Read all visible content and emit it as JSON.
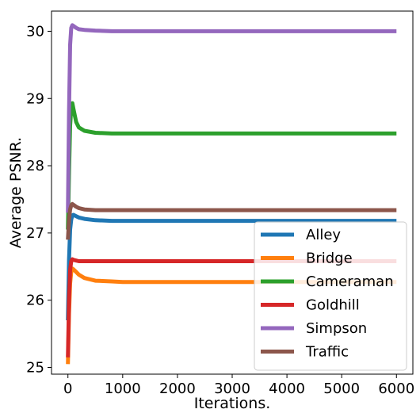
{
  "chart_data": {
    "type": "line",
    "title": "",
    "xlabel": "Iterations.",
    "ylabel": "Average PSNR.",
    "xlim": [
      -300,
      6300
    ],
    "ylim": [
      24.9,
      30.3
    ],
    "x_ticks": [
      0,
      1000,
      2000,
      3000,
      4000,
      5000,
      6000
    ],
    "y_ticks": [
      25,
      26,
      27,
      28,
      29,
      30
    ],
    "grid": false,
    "legend_position": "lower right",
    "series": [
      {
        "name": "Alley",
        "color": "#1f77b4",
        "x": [
          0,
          20,
          40,
          60,
          80,
          100,
          150,
          200,
          300,
          500,
          800,
          1000,
          6000
        ],
        "y": [
          25.7,
          26.6,
          27.05,
          27.2,
          27.26,
          27.27,
          27.25,
          27.23,
          27.21,
          27.19,
          27.18,
          27.18,
          27.18
        ]
      },
      {
        "name": "Bridge",
        "color": "#ff7f0e",
        "x": [
          0,
          20,
          40,
          60,
          80,
          100,
          150,
          200,
          300,
          500,
          800,
          1000,
          6000
        ],
        "y": [
          25.05,
          25.8,
          26.25,
          26.42,
          26.47,
          26.46,
          26.42,
          26.38,
          26.33,
          26.29,
          26.28,
          26.27,
          26.27
        ]
      },
      {
        "name": "Cameraman",
        "color": "#2ca02c",
        "x": [
          0,
          20,
          40,
          60,
          80,
          100,
          150,
          200,
          300,
          500,
          800,
          1000,
          6000
        ],
        "y": [
          27.05,
          27.9,
          28.6,
          28.85,
          28.93,
          28.85,
          28.65,
          28.57,
          28.52,
          28.49,
          28.48,
          28.48,
          28.48
        ]
      },
      {
        "name": "Goldhill",
        "color": "#d62728",
        "x": [
          0,
          20,
          40,
          60,
          80,
          100,
          150,
          200,
          300,
          500,
          1000,
          6000
        ],
        "y": [
          25.15,
          26.0,
          26.45,
          26.58,
          26.61,
          26.6,
          26.59,
          26.58,
          26.58,
          26.58,
          26.58,
          26.58
        ]
      },
      {
        "name": "Simpson",
        "color": "#9467bd",
        "x": [
          0,
          20,
          40,
          60,
          80,
          100,
          150,
          200,
          300,
          500,
          800,
          1000,
          6000
        ],
        "y": [
          27.3,
          28.8,
          29.8,
          30.05,
          30.09,
          30.08,
          30.05,
          30.03,
          30.02,
          30.01,
          30.0,
          30.0,
          30.0
        ]
      },
      {
        "name": "Traffic",
        "color": "#8c564b",
        "x": [
          0,
          20,
          40,
          60,
          80,
          100,
          150,
          200,
          300,
          500,
          800,
          1000,
          6000
        ],
        "y": [
          26.9,
          27.2,
          27.35,
          27.41,
          27.43,
          27.42,
          27.39,
          27.37,
          27.35,
          27.34,
          27.34,
          27.34,
          27.34
        ]
      }
    ]
  }
}
